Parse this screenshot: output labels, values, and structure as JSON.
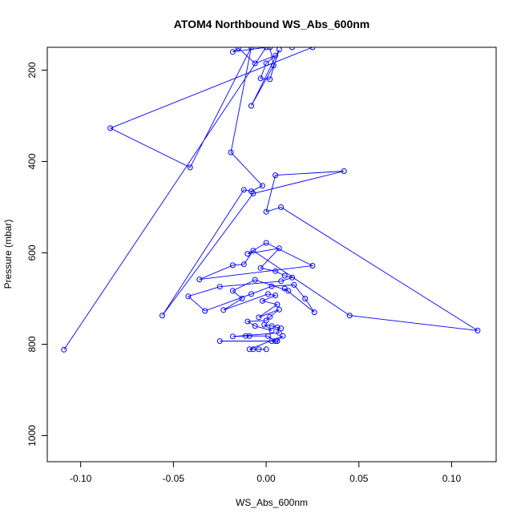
{
  "chart_data": {
    "type": "scatter",
    "title": "ATOM4 Northbound WS_Abs_600nm",
    "xlabel": "WS_Abs_600nm",
    "ylabel": "Pressure (mbar)",
    "xlim": [
      -0.118,
      0.124
    ],
    "ylim": [
      1057,
      150
    ],
    "y_reversed": true,
    "x_ticks": [
      -0.1,
      -0.05,
      0.0,
      0.05,
      0.1
    ],
    "x_tick_labels": [
      "-0.10",
      "-0.05",
      "0.00",
      "0.05",
      "0.10"
    ],
    "y_ticks": [
      200,
      400,
      600,
      800,
      1000
    ],
    "y_tick_labels": [
      "200",
      "400",
      "600",
      "800",
      "1000"
    ],
    "grid": false,
    "legend": "none",
    "series": [
      {
        "color": "#0000ff",
        "marker": "open-circle",
        "connected": true,
        "points": [
          [
            -0.109,
            812
          ],
          [
            0.0,
            150
          ],
          [
            -0.018,
            160
          ],
          [
            -0.015,
            152
          ],
          [
            -0.006,
            185
          ],
          [
            0.005,
            168
          ],
          [
            0.0,
            185
          ],
          [
            -0.003,
            218
          ],
          [
            0.002,
            220
          ],
          [
            0.007,
            155
          ],
          [
            -0.008,
            278
          ],
          [
            0.004,
            190
          ],
          [
            0.002,
            150
          ],
          [
            0.014,
            150
          ],
          [
            0.025,
            150
          ],
          [
            -0.084,
            327
          ],
          [
            -0.041,
            413
          ],
          [
            -0.008,
            150
          ],
          [
            -0.019,
            380
          ],
          [
            -0.002,
            453
          ],
          [
            -0.008,
            465
          ],
          [
            -0.012,
            462
          ],
          [
            -0.056,
            737
          ],
          [
            -0.007,
            470
          ],
          [
            0.042,
            421
          ],
          [
            0.005,
            430
          ],
          [
            0.0,
            510
          ],
          [
            0.008,
            500
          ],
          [
            0.114,
            770
          ],
          [
            0.045,
            737
          ],
          [
            -0.007,
            595
          ],
          [
            -0.012,
            625
          ],
          [
            -0.018,
            627
          ],
          [
            -0.036,
            658
          ],
          [
            0.025,
            628
          ],
          [
            0.0,
            578
          ],
          [
            -0.01,
            602
          ],
          [
            0.007,
            590
          ],
          [
            -0.003,
            633
          ],
          [
            0.005,
            640
          ],
          [
            0.01,
            650
          ],
          [
            0.014,
            654
          ],
          [
            0.008,
            662
          ],
          [
            -0.025,
            674
          ],
          [
            -0.042,
            695
          ],
          [
            -0.033,
            727
          ],
          [
            -0.008,
            690
          ],
          [
            0.003,
            673
          ],
          [
            0.015,
            670
          ],
          [
            0.021,
            700
          ],
          [
            0.026,
            730
          ],
          [
            0.01,
            678
          ],
          [
            0.012,
            683
          ],
          [
            -0.006,
            659
          ],
          [
            -0.018,
            683
          ],
          [
            -0.013,
            700
          ],
          [
            -0.023,
            725
          ],
          [
            0.001,
            690
          ],
          [
            0.005,
            693
          ],
          [
            -0.002,
            705
          ],
          [
            0.006,
            713
          ],
          [
            -0.004,
            741
          ],
          [
            0.007,
            724
          ],
          [
            0.002,
            740
          ],
          [
            0.0,
            748
          ],
          [
            -0.01,
            750
          ],
          [
            -0.006,
            760
          ],
          [
            0.003,
            770
          ],
          [
            -0.001,
            757
          ],
          [
            0.003,
            760
          ],
          [
            0.008,
            765
          ],
          [
            0.006,
            763
          ],
          [
            0.007,
            775
          ],
          [
            -0.018,
            783
          ],
          [
            -0.011,
            782
          ],
          [
            -0.009,
            782
          ],
          [
            0.001,
            782
          ],
          [
            0.005,
            793
          ],
          [
            -0.025,
            793
          ],
          [
            0.003,
            793
          ],
          [
            0.006,
            793
          ],
          [
            0.009,
            782
          ],
          [
            -0.009,
            811
          ],
          [
            -0.007,
            811
          ],
          [
            -0.004,
            811
          ],
          [
            0.0,
            811
          ]
        ]
      }
    ]
  }
}
